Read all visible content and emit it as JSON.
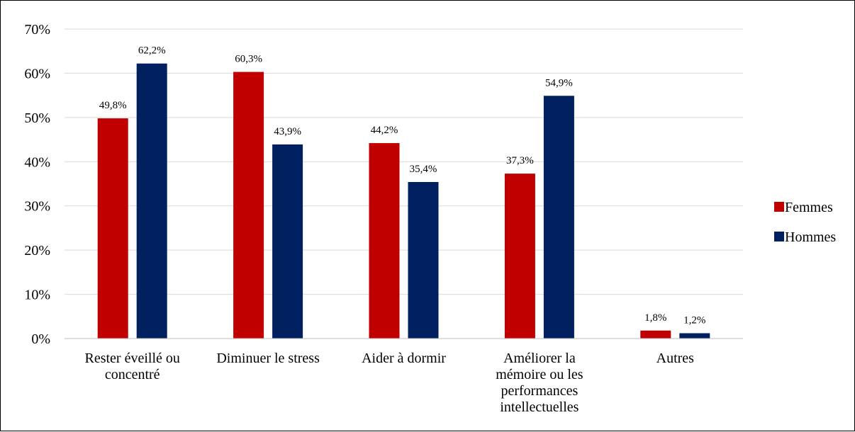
{
  "chart_data": {
    "type": "bar",
    "categories": [
      [
        "Rester éveillé ou",
        "concentré"
      ],
      [
        "Diminuer le stress"
      ],
      [
        "Aider à dormir"
      ],
      [
        "Améliorer la",
        "mémoire ou les",
        "performances",
        "intellectuelles"
      ],
      [
        "Autres"
      ]
    ],
    "series": [
      {
        "name": "Femmes",
        "color": "#c00000",
        "values": [
          49.8,
          60.3,
          44.2,
          37.3,
          1.8
        ],
        "labels": [
          "49,8%",
          "60,3%",
          "44,2%",
          "37,3%",
          "1,8%"
        ]
      },
      {
        "name": "Hommes",
        "color": "#002060",
        "values": [
          62.2,
          43.9,
          35.4,
          54.9,
          1.2
        ],
        "labels": [
          "62,2%",
          "43,9%",
          "35,4%",
          "54,9%",
          "1,2%"
        ]
      }
    ],
    "ylim": [
      0,
      70
    ],
    "yticks": [
      "0%",
      "10%",
      "20%",
      "30%",
      "40%",
      "50%",
      "60%",
      "70%"
    ],
    "grid": true,
    "legend": "right"
  }
}
